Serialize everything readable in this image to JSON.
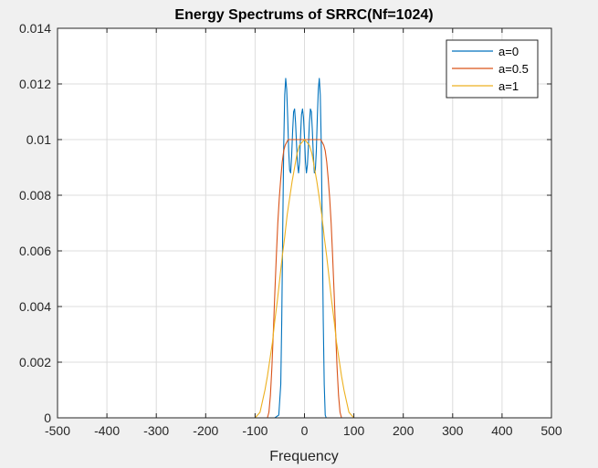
{
  "chart_data": {
    "type": "line",
    "title": "Energy Spectrums of SRRC(Nf=1024)",
    "xlabel": "Frequency",
    "ylabel": "",
    "xlim": [
      -500,
      500
    ],
    "ylim": [
      0,
      0.014
    ],
    "xticks": [
      -500,
      -400,
      -300,
      -200,
      -100,
      0,
      100,
      200,
      300,
      400,
      500
    ],
    "xtick_labels": [
      "-500",
      "-400",
      "-300",
      "-200",
      "-100",
      "0",
      "100",
      "200",
      "300",
      "400",
      "500"
    ],
    "yticks": [
      0,
      0.002,
      0.004,
      0.006,
      0.008,
      0.01,
      0.012,
      0.014
    ],
    "ytick_labels": [
      "0",
      "0.002",
      "0.004",
      "0.006",
      "0.008",
      "0.01",
      "0.012",
      "0.014"
    ],
    "grid": true,
    "legend_position": "top-right",
    "series": [
      {
        "name": "a=0",
        "color": "#0072BD",
        "x": [
          -500,
          -60,
          -52,
          -48,
          -46,
          -44,
          -42,
          -40,
          -38,
          -36,
          -34,
          -32,
          -30,
          -28,
          -26,
          -24,
          -22,
          -20,
          -18,
          -16,
          -14,
          -12,
          -10,
          -8,
          -6,
          -4,
          -2,
          0,
          2,
          4,
          6,
          8,
          10,
          12,
          14,
          16,
          18,
          20,
          22,
          24,
          26,
          28,
          30,
          32,
          34,
          36,
          38,
          40,
          42,
          44,
          46,
          48,
          52,
          60,
          500
        ],
        "y": [
          0,
          0,
          0.0001,
          0.0012,
          0.0035,
          0.0068,
          0.0098,
          0.0116,
          0.0122,
          0.0118,
          0.0108,
          0.0096,
          0.0089,
          0.0088,
          0.0094,
          0.0103,
          0.011,
          0.0111,
          0.0106,
          0.0098,
          0.0091,
          0.0088,
          0.0092,
          0.0101,
          0.0109,
          0.0111,
          0.0108,
          0.0101,
          0.0092,
          0.0088,
          0.0091,
          0.0098,
          0.0106,
          0.0111,
          0.011,
          0.0103,
          0.0094,
          0.0088,
          0.0089,
          0.0096,
          0.0108,
          0.0118,
          0.0122,
          0.0116,
          0.0098,
          0.0068,
          0.0035,
          0.0012,
          0.0001,
          0,
          0,
          0,
          0,
          0,
          0
        ]
      },
      {
        "name": "a=0.5",
        "color": "#D95319",
        "x": [
          -500,
          -75,
          -72,
          -69,
          -66,
          -63,
          -60,
          -57,
          -54,
          -51,
          -48,
          -45,
          -42,
          -39,
          -36,
          -33,
          -30,
          -27,
          -24,
          -25,
          0,
          25,
          24,
          27,
          30,
          33,
          36,
          39,
          42,
          45,
          48,
          51,
          54,
          57,
          60,
          63,
          66,
          69,
          72,
          75,
          500
        ],
        "y": [
          0,
          0,
          0.0002,
          0.0008,
          0.0018,
          0.0031,
          0.0045,
          0.0058,
          0.007,
          0.0079,
          0.0086,
          0.0092,
          0.0096,
          0.0098,
          0.0099,
          0.01,
          0.01,
          0.01,
          0.01,
          0.01,
          0.01,
          0.01,
          0.01,
          0.01,
          0.01,
          0.01,
          0.0099,
          0.0098,
          0.0096,
          0.0092,
          0.0086,
          0.0079,
          0.007,
          0.0058,
          0.0045,
          0.0031,
          0.0018,
          0.0008,
          0.0002,
          0,
          0
        ]
      },
      {
        "name": "a=1",
        "color": "#EDB120",
        "x": [
          -500,
          -100,
          -95,
          -90,
          -85,
          -80,
          -75,
          -70,
          -65,
          -60,
          -55,
          -50,
          -45,
          -40,
          -35,
          -30,
          -25,
          -20,
          -15,
          -10,
          -5,
          0,
          5,
          10,
          15,
          20,
          25,
          30,
          35,
          40,
          45,
          50,
          55,
          60,
          65,
          70,
          75,
          80,
          85,
          90,
          95,
          100,
          500
        ],
        "y": [
          0,
          0,
          0.0001,
          0.0002,
          0.0006,
          0.001,
          0.0015,
          0.0021,
          0.0027,
          0.0035,
          0.0042,
          0.005,
          0.0058,
          0.0065,
          0.0073,
          0.0079,
          0.0085,
          0.009,
          0.0095,
          0.0098,
          0.0099,
          0.01,
          0.0099,
          0.0098,
          0.0095,
          0.009,
          0.0085,
          0.0079,
          0.0073,
          0.0065,
          0.0058,
          0.005,
          0.0042,
          0.0035,
          0.0027,
          0.0021,
          0.0015,
          0.001,
          0.0006,
          0.0002,
          0.0001,
          0,
          0
        ]
      }
    ]
  }
}
